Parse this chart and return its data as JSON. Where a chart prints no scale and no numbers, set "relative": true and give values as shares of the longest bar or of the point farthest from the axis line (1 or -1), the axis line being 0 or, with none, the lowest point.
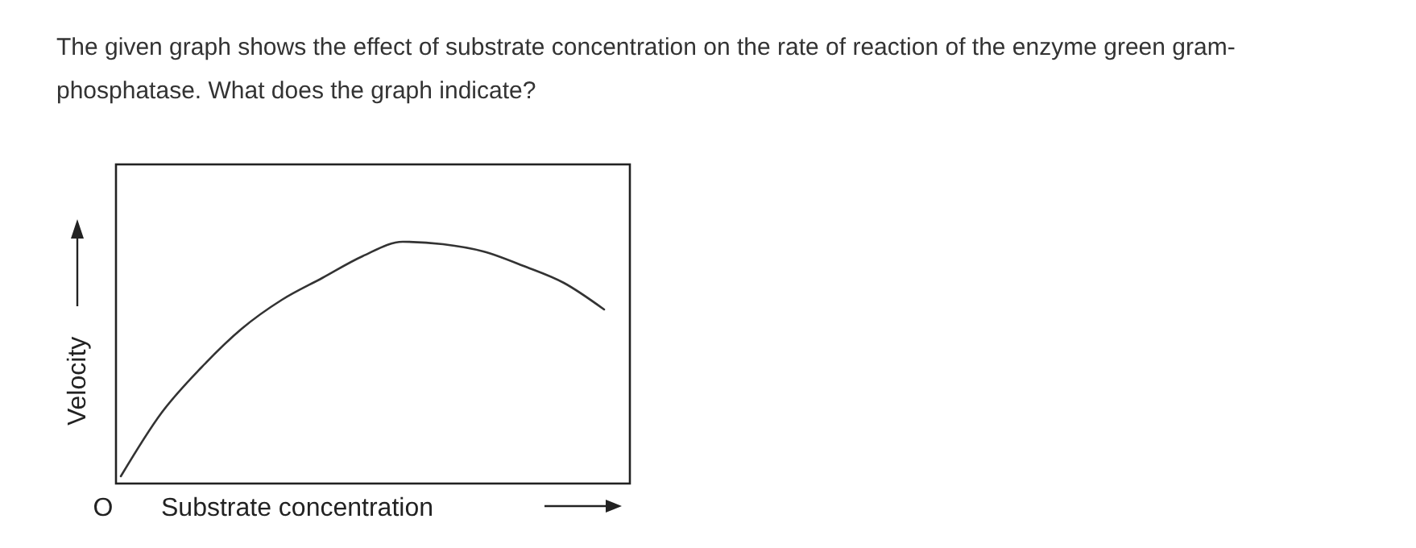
{
  "chart_data": {
    "type": "line",
    "title": "The given graph shows the effect of substrate concentration on the rate of reaction of the enzyme green gram-phosphatase. What does the graph indicate?",
    "xlabel": "Substrate concentration",
    "ylabel": "Velocity",
    "annotations": [
      "O"
    ],
    "relative": true,
    "categories": [
      null,
      null,
      null,
      null,
      null,
      null,
      null,
      null,
      null,
      null,
      null,
      null,
      null
    ],
    "series": [
      {
        "color": "#333333",
        "values": [
          0.03,
          0.29,
          0.48,
          0.64,
          0.76,
          0.85,
          0.94,
          1,
          0.99,
          0.96,
          0.9,
          0.83,
          0.72
        ]
      }
    ],
    "marker": "none",
    "line_style": "solid"
  }
}
